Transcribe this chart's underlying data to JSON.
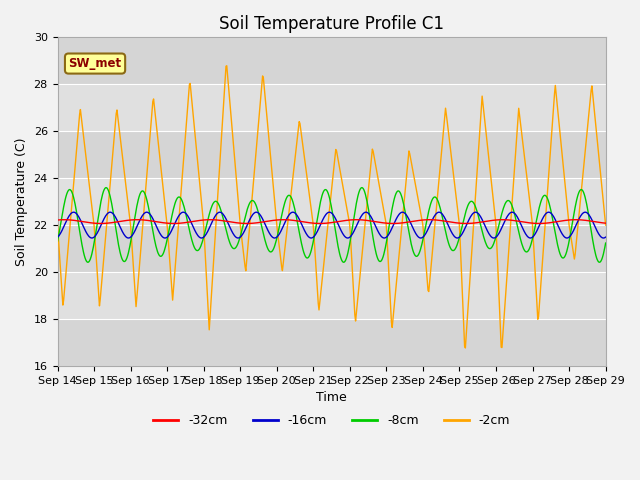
{
  "title": "Soil Temperature Profile C1",
  "xlabel": "Time",
  "ylabel": "Soil Temperature (C)",
  "ylim": [
    16,
    30
  ],
  "xlim": [
    0,
    15
  ],
  "x_tick_labels": [
    "Sep 14",
    "Sep 15",
    "Sep 16",
    "Sep 17",
    "Sep 18",
    "Sep 19",
    "Sep 20",
    "Sep 21",
    "Sep 22",
    "Sep 23",
    "Sep 24",
    "Sep 25",
    "Sep 26",
    "Sep 27",
    "Sep 28",
    "Sep 29"
  ],
  "yticks": [
    16,
    18,
    20,
    22,
    24,
    26,
    28,
    30
  ],
  "legend_label": "SW_met",
  "legend_box_facecolor": "#FFFF99",
  "legend_box_edgecolor": "#8B6914",
  "series_colors": {
    "-32cm": "#FF0000",
    "-16cm": "#0000CC",
    "-8cm": "#00CC00",
    "-2cm": "#FFA500"
  },
  "plot_bg_color": "#E0E0E0",
  "fig_bg_color": "#F2F2F2",
  "grid_color": "#FFFFFF",
  "title_fontsize": 12,
  "axis_label_fontsize": 9,
  "tick_fontsize": 8
}
